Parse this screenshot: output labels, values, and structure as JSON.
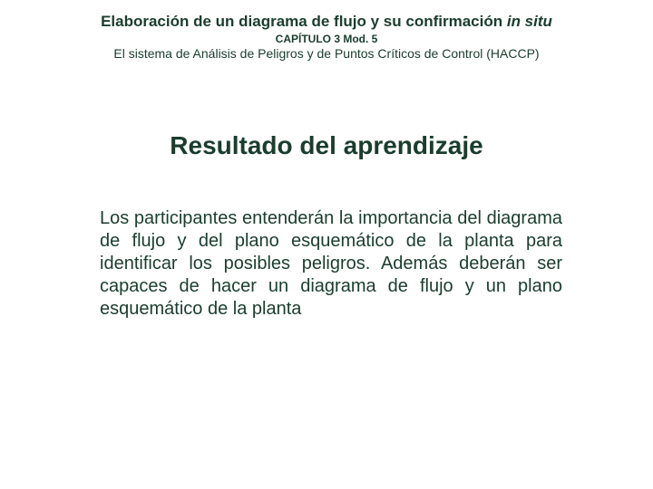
{
  "header": {
    "title_main": "Elaboración de un diagrama de flujo y su confirmación ",
    "title_italic": "in situ",
    "chapter": "CAPÍTULO 3 Mod. 5",
    "subtitle": "El sistema de Análisis de Peligros y de Puntos Críticos de Control (HACCP)"
  },
  "heading": "Resultado del aprendizaje",
  "body": "Los participantes entenderán la importancia del diagrama de flujo y del plano esquemático de la planta para identificar los posibles peligros. Además deberán ser capaces de hacer un diagrama de flujo y un plano esquemático de la planta",
  "colors": {
    "text": "#1a3d2e",
    "background": "#ffffff"
  },
  "fonts": {
    "title_size_pt": 17,
    "chapter_size_pt": 12,
    "subtitle_size_pt": 14,
    "heading_size_pt": 28,
    "body_size_pt": 20
  }
}
